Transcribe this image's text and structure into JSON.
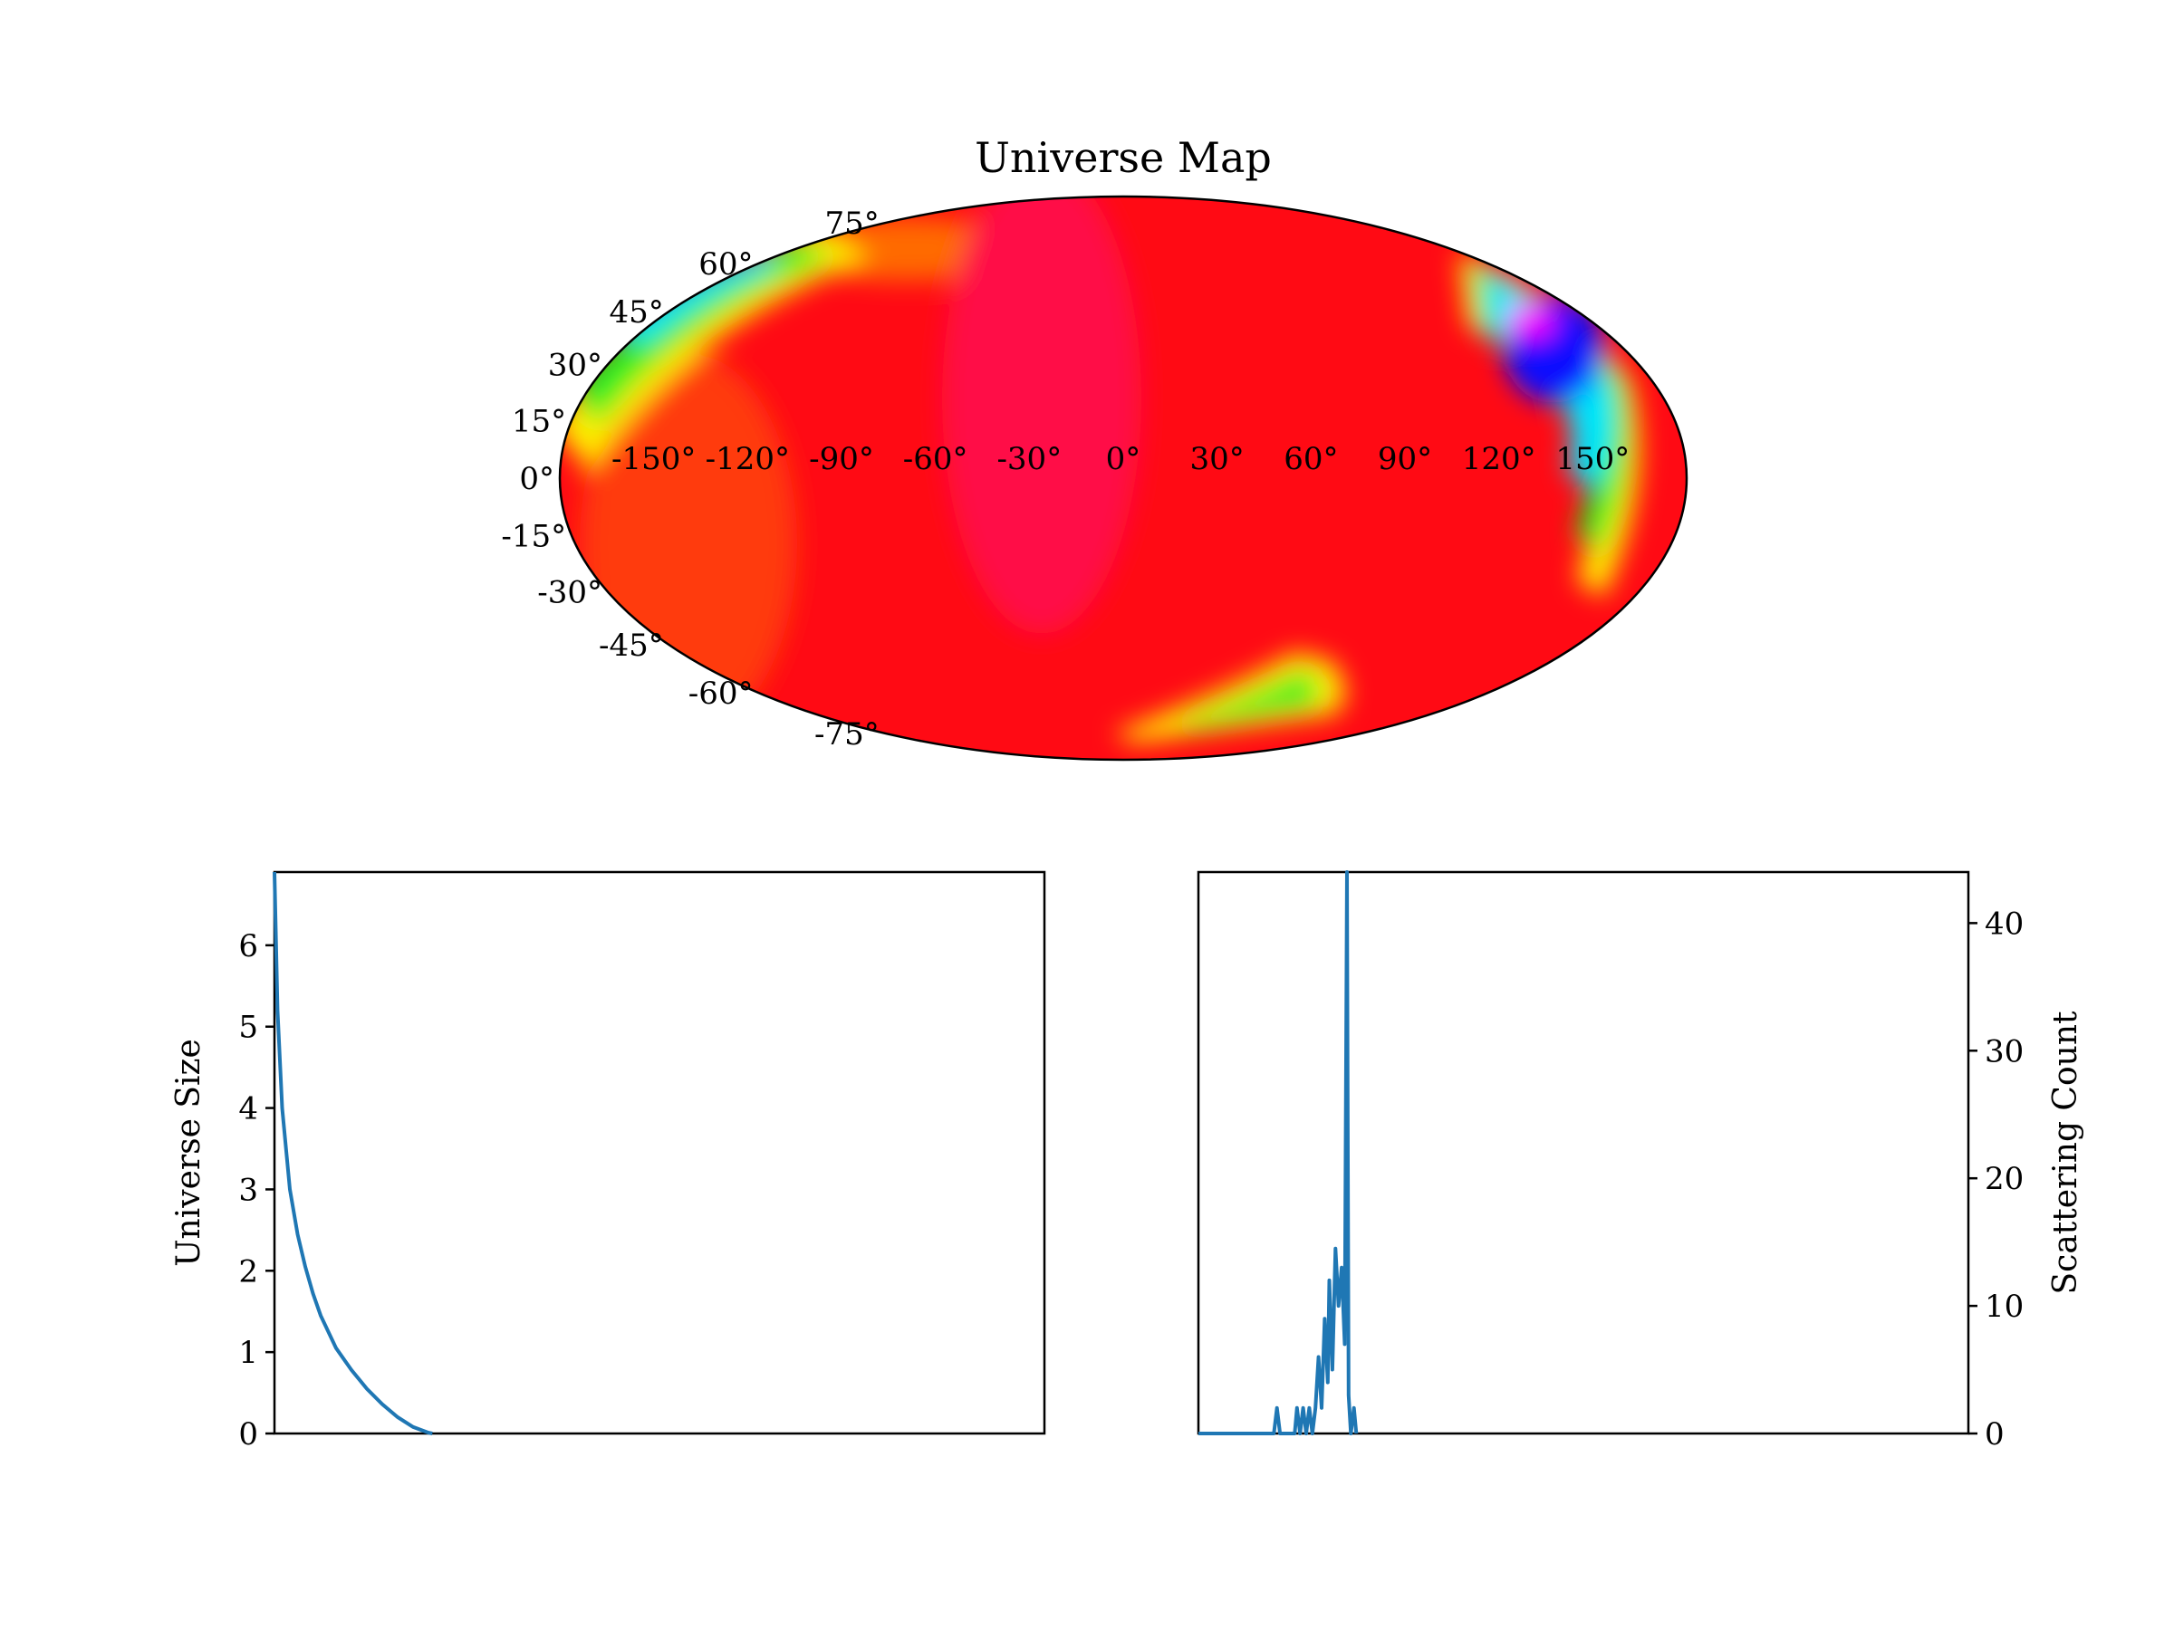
{
  "chart_data": [
    {
      "type": "heatmap",
      "projection": "mollweide",
      "title": "Universe Map",
      "longitude_ticks": [
        "-150°",
        "-120°",
        "-90°",
        "-60°",
        "-30°",
        "0°",
        "30°",
        "60°",
        "90°",
        "120°",
        "150°"
      ],
      "longitude_values": [
        -150,
        -120,
        -90,
        -60,
        -30,
        0,
        30,
        60,
        90,
        120,
        150
      ],
      "latitude_ticks": [
        "75°",
        "60°",
        "45°",
        "30°",
        "15°",
        "0°",
        "-15°",
        "-30°",
        "-45°",
        "-60°",
        "-75°"
      ],
      "latitude_values": [
        75,
        60,
        45,
        30,
        15,
        0,
        -15,
        -30,
        -45,
        -60,
        -75
      ],
      "dominant_color": "#ff0a14",
      "colormap": [
        "#ff0000",
        "#ffff00",
        "#00ff00",
        "#00ffff",
        "#0000ff",
        "#ff00ff"
      ],
      "grid": false
    },
    {
      "type": "line",
      "title": "",
      "xlabel": "",
      "ylabel": "Universe Size",
      "ylim": [
        0,
        6.9
      ],
      "xlim": [
        0,
        100
      ],
      "yticks": [
        "0",
        "1",
        "2",
        "3",
        "4",
        "5",
        "6"
      ],
      "ytick_values": [
        0,
        1,
        2,
        3,
        4,
        5,
        6
      ],
      "x": [
        0,
        0.4,
        1,
        2,
        3,
        4,
        5,
        6,
        8,
        10,
        12,
        14,
        16,
        18,
        20,
        20.5
      ],
      "values": [
        6.9,
        5.2,
        4.0,
        3.0,
        2.45,
        2.05,
        1.72,
        1.45,
        1.05,
        0.78,
        0.55,
        0.36,
        0.2,
        0.08,
        0.01,
        0.0
      ],
      "color": "#1f77b4",
      "grid": false
    },
    {
      "type": "line",
      "title": "",
      "xlabel": "",
      "ylabel": "Scattering Count",
      "ylabel_side": "right",
      "ylim": [
        0,
        44
      ],
      "xlim": [
        0,
        100
      ],
      "yticks": [
        "0",
        "10",
        "20",
        "30",
        "40"
      ],
      "ytick_values": [
        0,
        10,
        20,
        30,
        40
      ],
      "x": [
        0,
        9.8,
        10.2,
        10.6,
        11.0,
        12.5,
        12.8,
        13.2,
        13.6,
        14.0,
        14.4,
        14.8,
        15.2,
        15.6,
        16.0,
        16.4,
        16.8,
        17.0,
        17.4,
        17.8,
        18.2,
        18.6,
        19.0,
        19.3,
        19.5,
        19.8,
        20.2,
        20.5
      ],
      "values": [
        0,
        0,
        2,
        0,
        0,
        0,
        2,
        0,
        2,
        0,
        2,
        0,
        2,
        6,
        2,
        9,
        4,
        12,
        5,
        14.5,
        10,
        13,
        7,
        44,
        3,
        0,
        2,
        0
      ],
      "color": "#1f77b4",
      "grid": false
    }
  ]
}
